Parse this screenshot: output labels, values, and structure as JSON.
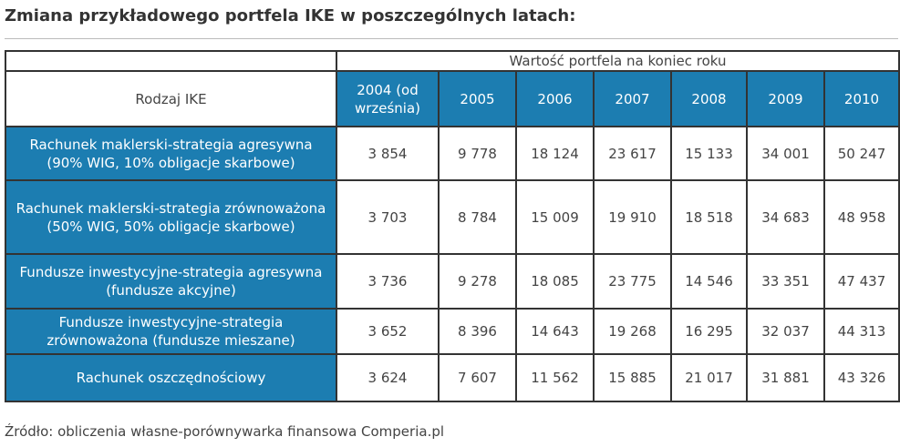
{
  "header": {
    "title": "Zmiana przykładowego portfela IKE w poszczególnych latach:"
  },
  "table": {
    "group_header": "Wartość portfela na koniec roku",
    "row_header": "Rodzaj IKE",
    "years": [
      "2004 (od września)",
      "2005",
      "2006",
      "2007",
      "2008",
      "2009",
      "2010"
    ],
    "rows": [
      {
        "label": "Rachunek maklerski-strategia agresywna (90% WIG, 10% obligacje skarbowe)",
        "values": [
          "3 854",
          "9 778",
          "18 124",
          "23 617",
          "15 133",
          "34 001",
          "50 247"
        ]
      },
      {
        "label": "Rachunek maklerski-strategia zrównoważona (50% WIG, 50% obligacje skarbowe)",
        "values": [
          "3 703",
          "8 784",
          "15 009",
          "19 910",
          "18 518",
          "34 683",
          "48 958"
        ]
      },
      {
        "label": "Fundusze inwestycyjne-strategia agresywna (fundusze akcyjne)",
        "values": [
          "3 736",
          "9 278",
          "18 085",
          "23 775",
          "14 546",
          "33 351",
          "47 437"
        ]
      },
      {
        "label": "Fundusze inwestycyjne-strategia zrównoważona (fundusze mieszane)",
        "values": [
          "3 652",
          "8 396",
          "14 643",
          "19 268",
          "16 295",
          "32 037",
          "44 313"
        ]
      },
      {
        "label": "Rachunek oszczędnościowy",
        "values": [
          "3 624",
          "7 607",
          "11 562",
          "15 885",
          "21 017",
          "31 881",
          "43 326"
        ]
      }
    ]
  },
  "source": "Źródło: obliczenia własne-porównywarka finansowa Comperia.pl"
}
